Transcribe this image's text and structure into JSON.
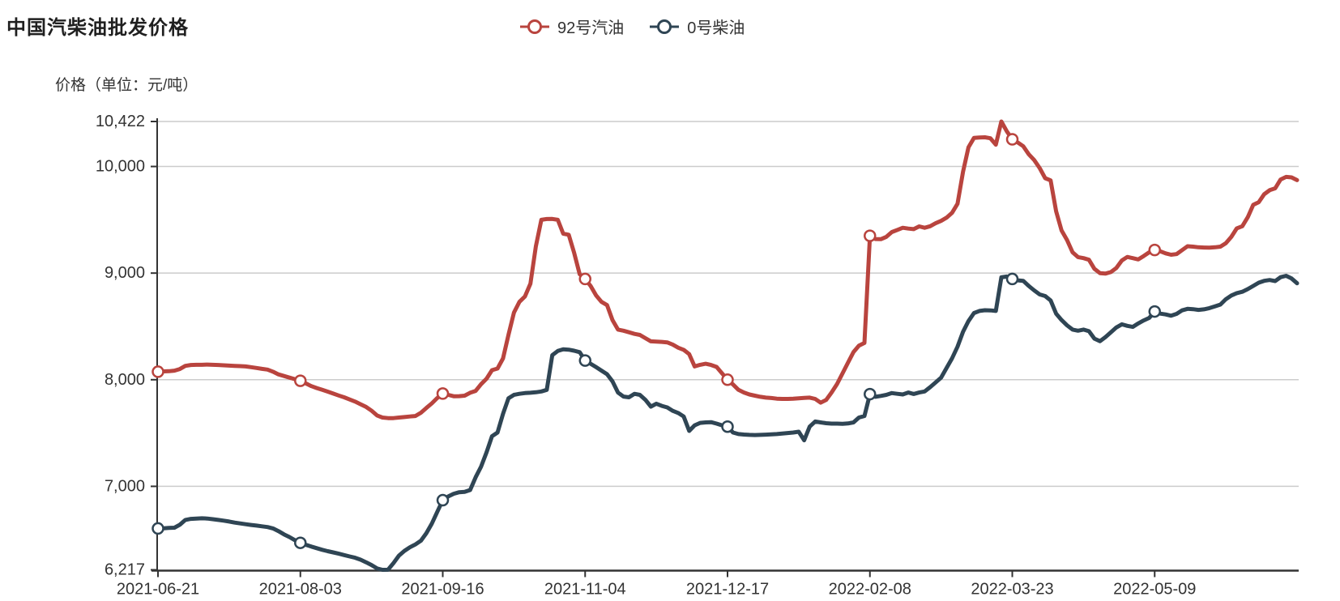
{
  "page": {
    "background": "#ffffff"
  },
  "header": {
    "title": "中国汽柴油批发价格"
  },
  "legend": {
    "items": [
      {
        "label": "92号汽油",
        "color": "#b9443e"
      },
      {
        "label": "0号柴油",
        "color": "#2f4554"
      }
    ]
  },
  "chart_data": {
    "type": "line",
    "title": "中国汽柴油批发价格",
    "ylabel": "价格（单位：元/吨）",
    "xlabel": "",
    "grid": true,
    "legend_position": "top-center",
    "ylim": [
      6217,
      10422
    ],
    "y_ticks": [
      {
        "value": 10422,
        "label": "10,422"
      },
      {
        "value": 10000,
        "label": "10,000"
      },
      {
        "value": 9000,
        "label": "9,000"
      },
      {
        "value": 8000,
        "label": "8,000"
      },
      {
        "value": 7000,
        "label": "7,000"
      },
      {
        "value": 6217,
        "label": "6,217"
      }
    ],
    "x_tick_labels": [
      "2021-06-21",
      "2021-08-03",
      "2021-09-16",
      "2021-11-04",
      "2021-12-17",
      "2022-02-08",
      "2022-03-23",
      "2022-05-09"
    ],
    "x_tick_indices": [
      0,
      26,
      52,
      78,
      104,
      130,
      156,
      182
    ],
    "marker_indices": [
      0,
      26,
      52,
      78,
      104,
      130,
      156,
      182
    ],
    "point_count": 209,
    "style": {
      "grid_color": "#cccccc",
      "axis_color": "#333333",
      "text_color": "#333333",
      "line_width": 5,
      "marker_radius": 6.5,
      "marker_fill": "#ffffff"
    },
    "series": [
      {
        "name": "92号汽油",
        "color": "#b9443e",
        "values": [
          8075,
          8078,
          8080,
          8085,
          8100,
          8130,
          8138,
          8140,
          8140,
          8142,
          8140,
          8138,
          8135,
          8132,
          8130,
          8128,
          8125,
          8118,
          8110,
          8102,
          8095,
          8075,
          8050,
          8035,
          8020,
          8005,
          7990,
          7965,
          7940,
          7922,
          7905,
          7888,
          7870,
          7852,
          7835,
          7815,
          7795,
          7770,
          7745,
          7710,
          7665,
          7645,
          7640,
          7640,
          7645,
          7650,
          7655,
          7660,
          7690,
          7735,
          7778,
          7828,
          7870,
          7858,
          7845,
          7846,
          7850,
          7878,
          7895,
          7958,
          8010,
          8090,
          8105,
          8200,
          8420,
          8630,
          8730,
          8780,
          8900,
          9250,
          9500,
          9507,
          9508,
          9500,
          9370,
          9360,
          9190,
          8990,
          8945,
          8880,
          8790,
          8730,
          8700,
          8560,
          8470,
          8460,
          8445,
          8430,
          8420,
          8390,
          8360,
          8358,
          8355,
          8350,
          8330,
          8300,
          8280,
          8240,
          8125,
          8140,
          8150,
          8138,
          8120,
          8060,
          8000,
          7955,
          7905,
          7880,
          7862,
          7850,
          7840,
          7832,
          7828,
          7822,
          7820,
          7820,
          7822,
          7826,
          7830,
          7832,
          7820,
          7785,
          7810,
          7880,
          7960,
          8060,
          8160,
          8260,
          8320,
          8345,
          9350,
          9320,
          9318,
          9340,
          9385,
          9405,
          9425,
          9418,
          9412,
          9438,
          9425,
          9440,
          9468,
          9490,
          9520,
          9565,
          9650,
          9950,
          10180,
          10268,
          10272,
          10274,
          10265,
          10205,
          10422,
          10330,
          10255,
          10225,
          10190,
          10115,
          10060,
          9985,
          9890,
          9870,
          9580,
          9400,
          9310,
          9195,
          9150,
          9140,
          9125,
          9040,
          9000,
          8995,
          9010,
          9048,
          9118,
          9152,
          9140,
          9128,
          9160,
          9195,
          9217,
          9205,
          9185,
          9172,
          9178,
          9215,
          9252,
          9248,
          9242,
          9240,
          9238,
          9242,
          9248,
          9280,
          9340,
          9420,
          9440,
          9525,
          9640,
          9665,
          9740,
          9778,
          9795,
          9878,
          9902,
          9898,
          9872
        ]
      },
      {
        "name": "0号柴油",
        "color": "#2f4554",
        "values": [
          6605,
          6607,
          6610,
          6612,
          6640,
          6685,
          6695,
          6698,
          6700,
          6698,
          6692,
          6685,
          6678,
          6670,
          6660,
          6652,
          6645,
          6638,
          6632,
          6625,
          6618,
          6605,
          6580,
          6550,
          6525,
          6495,
          6470,
          6452,
          6435,
          6420,
          6405,
          6392,
          6380,
          6368,
          6355,
          6342,
          6330,
          6312,
          6288,
          6262,
          6230,
          6217,
          6218,
          6280,
          6350,
          6395,
          6428,
          6455,
          6490,
          6560,
          6650,
          6760,
          6870,
          6905,
          6930,
          6945,
          6948,
          6965,
          7085,
          7185,
          7320,
          7470,
          7505,
          7680,
          7825,
          7858,
          7868,
          7875,
          7878,
          7882,
          7890,
          7905,
          8230,
          8270,
          8286,
          8282,
          8272,
          8258,
          8180,
          8150,
          8118,
          8085,
          8052,
          7985,
          7880,
          7842,
          7835,
          7868,
          7858,
          7812,
          7748,
          7775,
          7755,
          7740,
          7708,
          7688,
          7655,
          7520,
          7572,
          7595,
          7600,
          7602,
          7588,
          7572,
          7560,
          7505,
          7490,
          7486,
          7483,
          7481,
          7483,
          7485,
          7487,
          7490,
          7495,
          7500,
          7505,
          7512,
          7432,
          7560,
          7608,
          7600,
          7592,
          7588,
          7588,
          7586,
          7590,
          7600,
          7645,
          7660,
          7865,
          7840,
          7848,
          7858,
          7875,
          7868,
          7862,
          7880,
          7866,
          7880,
          7890,
          7930,
          7975,
          8020,
          8110,
          8200,
          8310,
          8450,
          8550,
          8625,
          8645,
          8652,
          8650,
          8645,
          8960,
          8968,
          8945,
          8932,
          8928,
          8880,
          8838,
          8800,
          8785,
          8744,
          8620,
          8560,
          8510,
          8470,
          8460,
          8470,
          8455,
          8385,
          8362,
          8400,
          8445,
          8490,
          8520,
          8505,
          8495,
          8528,
          8556,
          8580,
          8640,
          8620,
          8612,
          8600,
          8618,
          8650,
          8665,
          8662,
          8655,
          8660,
          8672,
          8688,
          8705,
          8755,
          8790,
          8812,
          8825,
          8850,
          8880,
          8910,
          8928,
          8935,
          8925,
          8962,
          8975,
          8950,
          8905
        ]
      }
    ]
  }
}
